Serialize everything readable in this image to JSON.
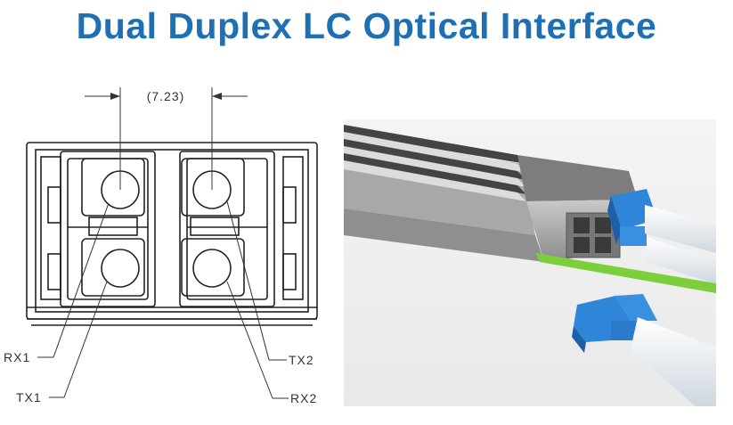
{
  "title": "Dual Duplex LC Optical Interface",
  "drawing": {
    "dimension_label": "(7.23)",
    "labels": {
      "rx1": "RX1",
      "tx1": "TX1",
      "tx2": "TX2",
      "rx2": "RX2"
    }
  },
  "photo": {
    "description_icon": "transceiver-photo",
    "colors": {
      "connector_blue": "#2f86d8",
      "fiber_green": "#7ccf3a",
      "housing_gray": "#9a9a9a"
    }
  }
}
